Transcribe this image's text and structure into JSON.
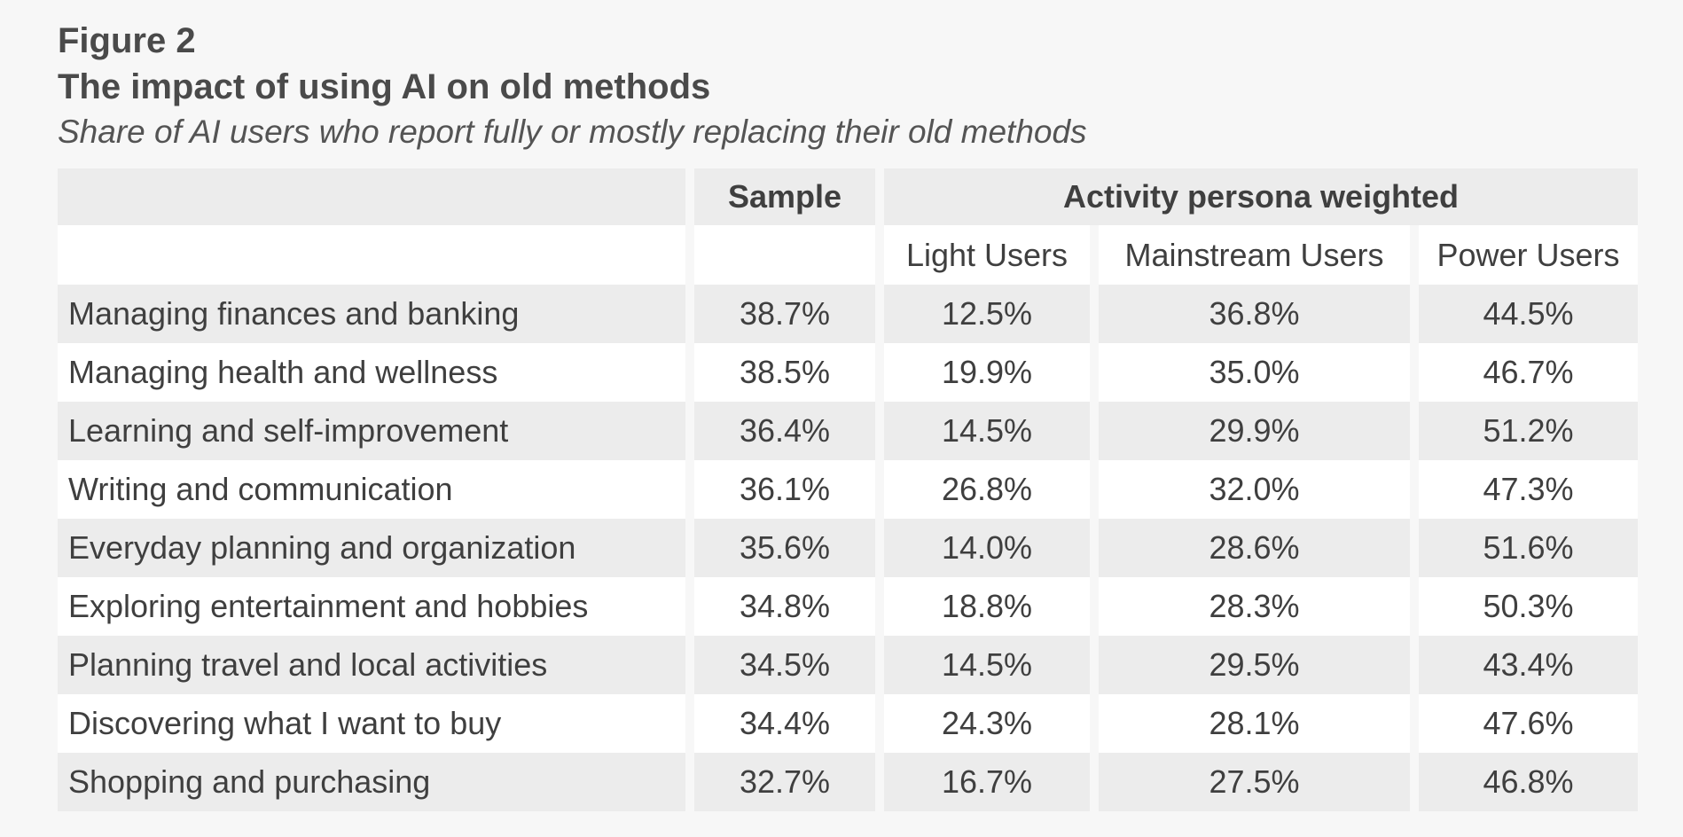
{
  "figure": {
    "label": "Figure 2",
    "title": "The impact of using AI on old methods",
    "subtitle": "Share of AI users who report fully or mostly replacing their old methods"
  },
  "table": {
    "sample_header": "Sample",
    "group_header": "Activity persona weighted",
    "subheaders": [
      "Light Users",
      "Mainstream Users",
      "Power Users"
    ],
    "rows": [
      {
        "label": "Managing finances and banking",
        "values": [
          "38.7%",
          "12.5%",
          "36.8%",
          "44.5%"
        ]
      },
      {
        "label": "Managing health and wellness",
        "values": [
          "38.5%",
          "19.9%",
          "35.0%",
          "46.7%"
        ]
      },
      {
        "label": "Learning and self-improvement",
        "values": [
          "36.4%",
          "14.5%",
          "29.9%",
          "51.2%"
        ]
      },
      {
        "label": "Writing and communication",
        "values": [
          "36.1%",
          "26.8%",
          "32.0%",
          "47.3%"
        ]
      },
      {
        "label": "Everyday planning and organization",
        "values": [
          "35.6%",
          "14.0%",
          "28.6%",
          "51.6%"
        ]
      },
      {
        "label": "Exploring entertainment and hobbies",
        "values": [
          "34.8%",
          "18.8%",
          "28.3%",
          "50.3%"
        ]
      },
      {
        "label": "Planning travel and local activities",
        "values": [
          "34.5%",
          "14.5%",
          "29.5%",
          "43.4%"
        ]
      },
      {
        "label": "Discovering what I want to buy",
        "values": [
          "34.4%",
          "24.3%",
          "28.1%",
          "47.6%"
        ]
      },
      {
        "label": "Shopping and purchasing",
        "values": [
          "32.7%",
          "16.7%",
          "27.5%",
          "46.8%"
        ]
      }
    ]
  },
  "colors": {
    "page_background": "#f7f7f7",
    "row_shade": "#ececec",
    "row_white": "#ffffff",
    "title_text": "#4a4a4a",
    "subtitle_text": "#545454",
    "table_text": "#3f3f3f"
  },
  "chart_data": {
    "type": "table",
    "figure_label": "Figure 2",
    "title": "The impact of using AI on old methods",
    "subtitle": "Share of AI users who report fully or mostly replacing their old methods",
    "unit": "%",
    "columns": [
      "Sample",
      "Light Users",
      "Mainstream Users",
      "Power Users"
    ],
    "column_group": {
      "label": "Activity persona weighted",
      "columns": [
        "Light Users",
        "Mainstream Users",
        "Power Users"
      ]
    },
    "rows": [
      {
        "category": "Managing finances and banking",
        "sample": 38.7,
        "light_users": 12.5,
        "mainstream_users": 36.8,
        "power_users": 44.5
      },
      {
        "category": "Managing health and wellness",
        "sample": 38.5,
        "light_users": 19.9,
        "mainstream_users": 35.0,
        "power_users": 46.7
      },
      {
        "category": "Learning and self-improvement",
        "sample": 36.4,
        "light_users": 14.5,
        "mainstream_users": 29.9,
        "power_users": 51.2
      },
      {
        "category": "Writing and communication",
        "sample": 36.1,
        "light_users": 26.8,
        "mainstream_users": 32.0,
        "power_users": 47.3
      },
      {
        "category": "Everyday planning and organization",
        "sample": 35.6,
        "light_users": 14.0,
        "mainstream_users": 28.6,
        "power_users": 51.6
      },
      {
        "category": "Exploring entertainment and hobbies",
        "sample": 34.8,
        "light_users": 18.8,
        "mainstream_users": 28.3,
        "power_users": 50.3
      },
      {
        "category": "Planning travel and local activities",
        "sample": 34.5,
        "light_users": 14.5,
        "mainstream_users": 29.5,
        "power_users": 43.4
      },
      {
        "category": "Discovering what I want to buy",
        "sample": 34.4,
        "light_users": 24.3,
        "mainstream_users": 28.1,
        "power_users": 47.6
      },
      {
        "category": "Shopping and purchasing",
        "sample": 32.7,
        "light_users": 16.7,
        "mainstream_users": 27.5,
        "power_users": 46.8
      }
    ]
  }
}
